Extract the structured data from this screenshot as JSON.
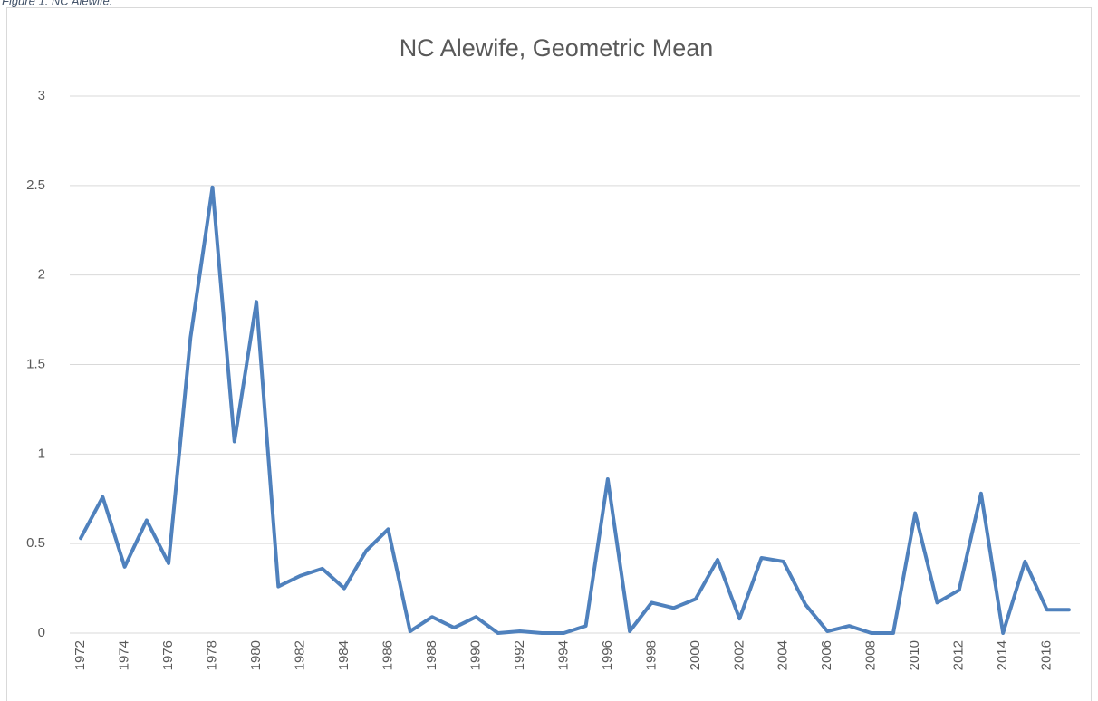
{
  "caption": "Figure 1. NC Alewife.",
  "chart_data": {
    "type": "line",
    "title": "NC Alewife, Geometric Mean",
    "categories": [
      "1972",
      null,
      "1974",
      null,
      "1976",
      null,
      "1978",
      null,
      "1980",
      null,
      "1982",
      null,
      "1984",
      null,
      "1986",
      null,
      "1988",
      null,
      "1990",
      null,
      "1992",
      null,
      "1994",
      null,
      "1996",
      null,
      "1998",
      null,
      "2000",
      null,
      "2002",
      null,
      "2004",
      null,
      "2006",
      null,
      "2008",
      null,
      "2010",
      null,
      "2012",
      null,
      "2014",
      null,
      "2016",
      null
    ],
    "values": [
      0.53,
      0.76,
      0.37,
      0.63,
      0.39,
      1.65,
      2.49,
      1.07,
      1.85,
      0.26,
      0.32,
      0.36,
      0.25,
      0.46,
      0.58,
      0.01,
      0.09,
      0.03,
      0.09,
      0.0,
      0.01,
      0.0,
      0.0,
      0.04,
      0.86,
      0.01,
      0.17,
      0.14,
      0.19,
      0.41,
      0.08,
      0.42,
      0.4,
      0.16,
      0.01,
      0.04,
      0.0,
      0.0,
      0.67,
      0.17,
      0.24,
      0.78,
      0.0,
      0.4,
      0.13,
      0.13
    ],
    "color": "#4f81bd",
    "ylim": [
      0,
      3
    ],
    "yticks": [
      0,
      0.5,
      1,
      1.5,
      2,
      2.5,
      3
    ],
    "grid": true
  }
}
